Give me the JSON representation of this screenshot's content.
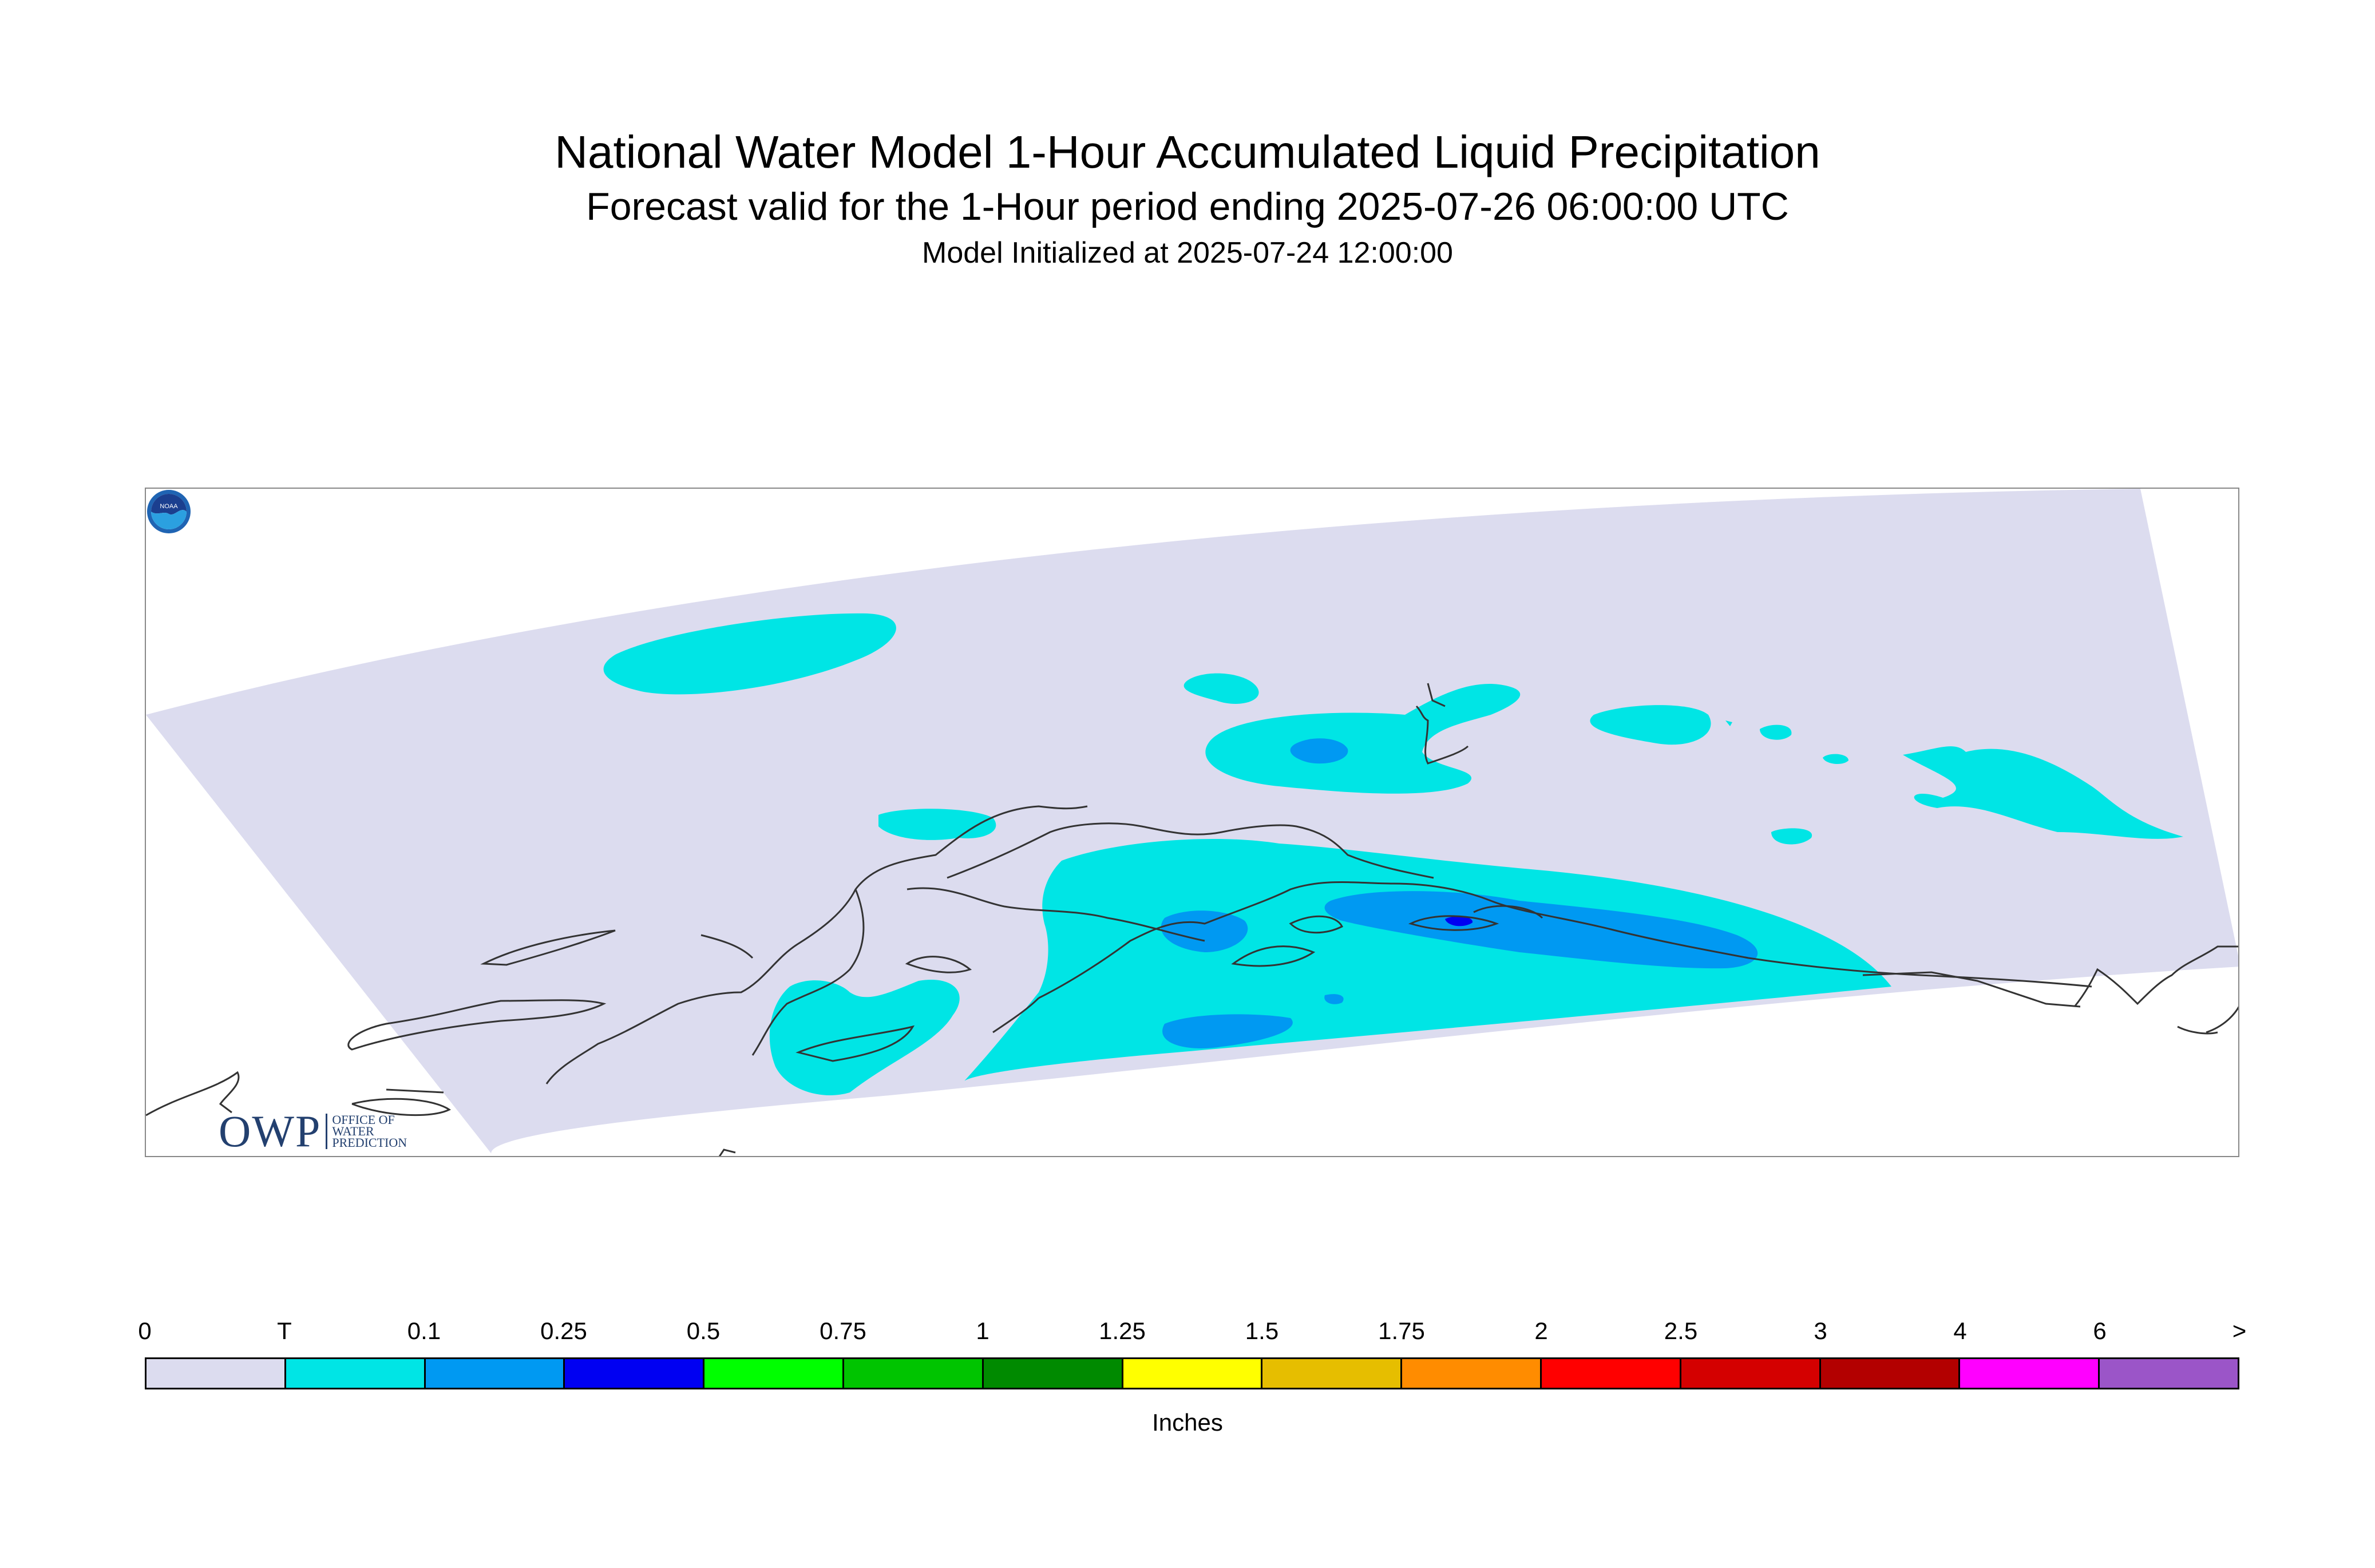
{
  "title": "National Water Model 1-Hour Accumulated Liquid Precipitation",
  "subtitle": "Forecast valid for the 1-Hour period ending 2025-07-26 06:00:00 UTC",
  "init_line": "Model Initialized at 2025-07-24 12:00:00",
  "logos": {
    "owp_text": "OWP",
    "owp_sub": [
      "OFFICE OF",
      "WATER",
      "PREDICTION"
    ],
    "noaa_text": "NOAA"
  },
  "legend": {
    "units_label": "Inches",
    "tick_labels": [
      "0",
      "T",
      "0.1",
      "0.25",
      "0.5",
      "0.75",
      "1",
      "1.25",
      "1.5",
      "1.75",
      "2",
      "2.5",
      "3",
      "4",
      "6",
      ">"
    ],
    "colors": [
      "#dcdcef",
      "#00e5e5",
      "#0099f2",
      "#0000f2",
      "#00ff00",
      "#00c400",
      "#008a00",
      "#ffff00",
      "#e6be00",
      "#ff8c00",
      "#ff0000",
      "#d40000",
      "#b30000",
      "#ff00ff",
      "#9b55c8"
    ]
  },
  "map_colors": {
    "domain_zero": "#dcdcef",
    "trace": "#00e5e5",
    "light": "#0099f2",
    "moderate": "#0000f2",
    "coast": "#333333"
  }
}
